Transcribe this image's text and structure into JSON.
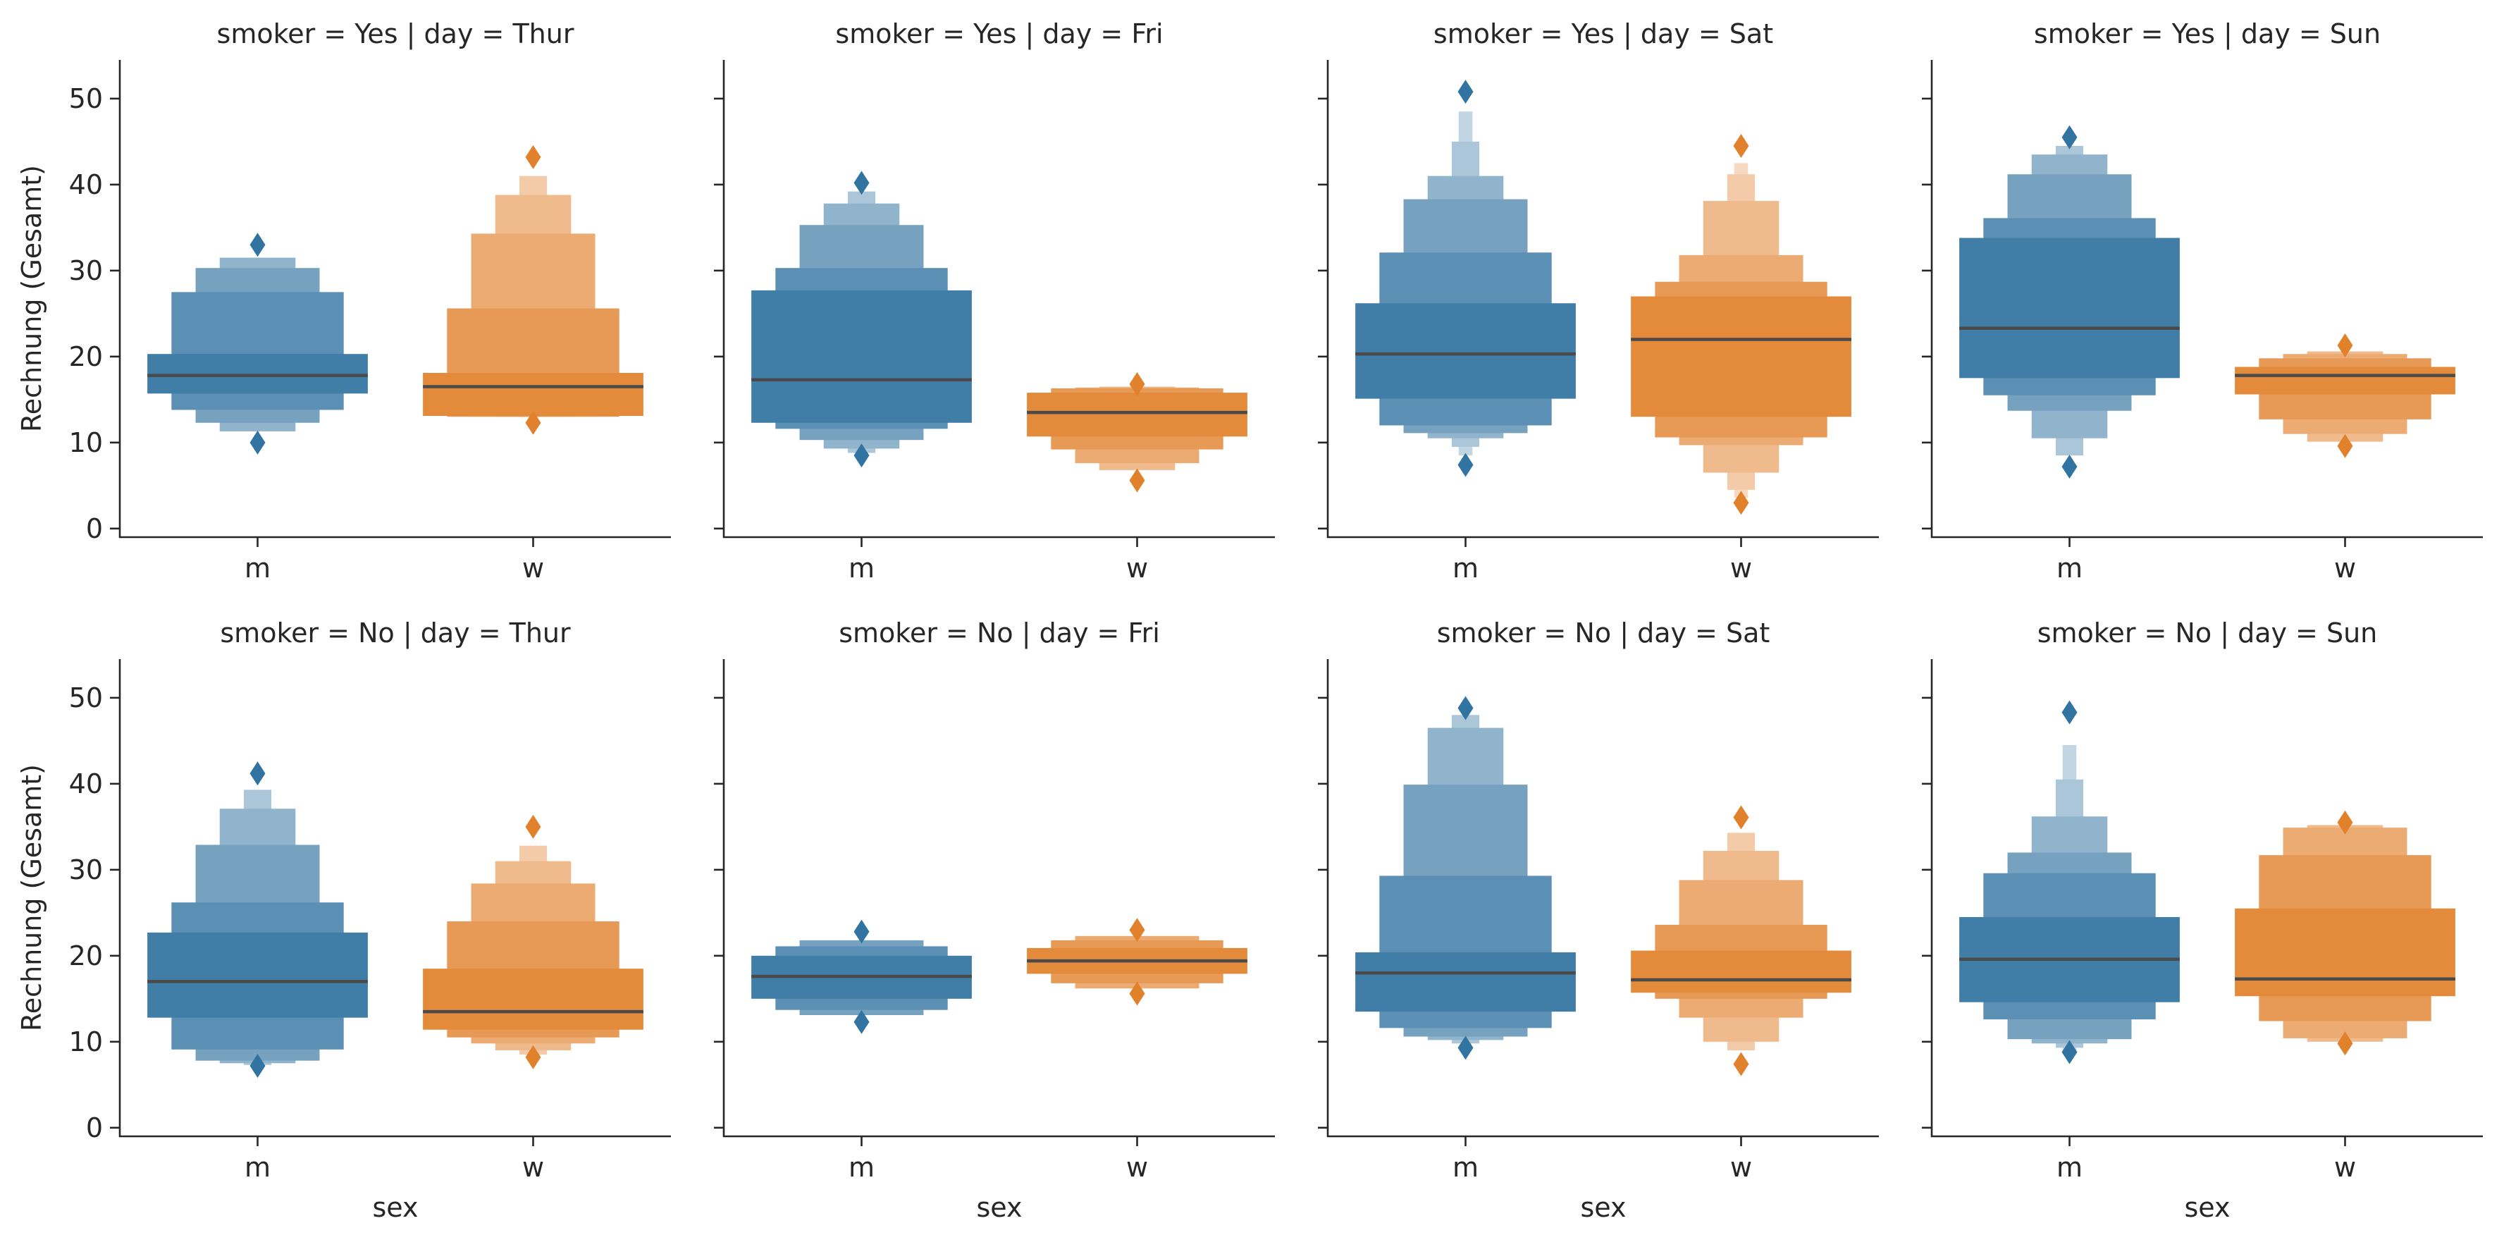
{
  "chart_data": {
    "type": "boxen",
    "x_field": "sex",
    "y_label": "Rechnung (Gesamt)",
    "categories": [
      "m",
      "w"
    ],
    "ylim": [
      -1,
      54.5
    ],
    "yticks": [
      0,
      10,
      20,
      30,
      40,
      50
    ],
    "colors": {
      "m": "#3274a1",
      "w": "#e1812c"
    },
    "median_color": "#4a4a4a",
    "grid": false,
    "panels": [
      {
        "title": "smoker = Yes | day = Thur",
        "boxes": [
          {
            "category": "m",
            "median": 17.8,
            "outliers": [
              33,
              10
            ],
            "levels": [
              [
                15.7,
                20.3
              ],
              [
                13.8,
                27.5
              ],
              [
                12.3,
                30.3
              ],
              [
                11.3,
                31.5
              ]
            ]
          },
          {
            "category": "w",
            "median": 16.5,
            "outliers": [
              43.2,
              12.3
            ],
            "levels": [
              [
                13.1,
                18.1
              ],
              [
                13.0,
                25.6
              ],
              [
                13.0,
                34.3
              ],
              [
                13.0,
                38.8
              ],
              [
                13.0,
                41
              ]
            ]
          }
        ]
      },
      {
        "title": "smoker = Yes | day = Fri",
        "boxes": [
          {
            "category": "m",
            "median": 17.3,
            "outliers": [
              40.2,
              8.5
            ],
            "levels": [
              [
                12.3,
                27.7
              ],
              [
                11.6,
                30.3
              ],
              [
                10.3,
                35.3
              ],
              [
                9.3,
                37.8
              ],
              [
                8.8,
                39.2
              ]
            ]
          },
          {
            "category": "w",
            "median": 13.5,
            "outliers": [
              16.8,
              5.6
            ],
            "levels": [
              [
                10.7,
                15.8
              ],
              [
                9.2,
                16.3
              ],
              [
                7.6,
                16.4
              ],
              [
                6.8,
                16.5
              ]
            ]
          }
        ]
      },
      {
        "title": "smoker = Yes | day = Sat",
        "boxes": [
          {
            "category": "m",
            "median": 20.3,
            "outliers": [
              50.8,
              7.4
            ],
            "levels": [
              [
                15.1,
                26.2
              ],
              [
                12.0,
                32.1
              ],
              [
                11.1,
                38.3
              ],
              [
                10.5,
                41
              ],
              [
                9.5,
                45
              ],
              [
                8.5,
                48.5
              ]
            ]
          },
          {
            "category": "w",
            "median": 22.0,
            "outliers": [
              44.5,
              3.0
            ],
            "levels": [
              [
                13.0,
                27.0
              ],
              [
                10.6,
                28.7
              ],
              [
                9.7,
                31.8
              ],
              [
                6.5,
                38.1
              ],
              [
                4.5,
                41.2
              ],
              [
                3.6,
                42.5
              ]
            ]
          }
        ]
      },
      {
        "title": "smoker = Yes | day = Sun",
        "boxes": [
          {
            "category": "m",
            "median": 23.3,
            "outliers": [
              45.5,
              7.2
            ],
            "levels": [
              [
                17.5,
                33.8
              ],
              [
                15.5,
                36.1
              ],
              [
                13.7,
                41.2
              ],
              [
                10.5,
                43.5
              ],
              [
                8.5,
                44.5
              ]
            ]
          },
          {
            "category": "w",
            "median": 17.8,
            "outliers": [
              21.3,
              9.6
            ],
            "levels": [
              [
                15.6,
                18.8
              ],
              [
                12.7,
                19.8
              ],
              [
                11.0,
                20.3
              ],
              [
                10.1,
                20.6
              ]
            ]
          }
        ]
      },
      {
        "title": "smoker = No | day = Thur",
        "boxes": [
          {
            "category": "m",
            "median": 17.0,
            "outliers": [
              41.2,
              7.2
            ],
            "levels": [
              [
                12.8,
                22.7
              ],
              [
                9.1,
                26.2
              ],
              [
                7.8,
                32.9
              ],
              [
                7.5,
                37.1
              ],
              [
                7.3,
                39.3
              ]
            ]
          },
          {
            "category": "w",
            "median": 13.5,
            "outliers": [
              35.0,
              8.2
            ],
            "levels": [
              [
                11.4,
                18.5
              ],
              [
                10.5,
                24.0
              ],
              [
                9.8,
                28.4
              ],
              [
                9.0,
                31.0
              ],
              [
                8.5,
                32.8
              ]
            ]
          }
        ]
      },
      {
        "title": "smoker = No | day = Fri",
        "boxes": [
          {
            "category": "m",
            "median": 17.6,
            "outliers": [
              22.8,
              12.3
            ],
            "levels": [
              [
                15.0,
                20.0
              ],
              [
                13.7,
                21.1
              ],
              [
                13.1,
                21.8
              ]
            ]
          },
          {
            "category": "w",
            "median": 19.4,
            "outliers": [
              23.0,
              15.6
            ],
            "levels": [
              [
                17.9,
                20.9
              ],
              [
                16.8,
                21.8
              ],
              [
                16.2,
                22.3
              ]
            ]
          }
        ]
      },
      {
        "title": "smoker = No | day = Sat",
        "boxes": [
          {
            "category": "m",
            "median": 18.0,
            "outliers": [
              48.8,
              9.3
            ],
            "levels": [
              [
                13.5,
                20.4
              ],
              [
                11.6,
                29.3
              ],
              [
                10.6,
                39.9
              ],
              [
                10.2,
                46.5
              ],
              [
                9.8,
                48
              ]
            ]
          },
          {
            "category": "w",
            "median": 17.2,
            "outliers": [
              36.1,
              7.4
            ],
            "levels": [
              [
                15.7,
                20.6
              ],
              [
                15.0,
                23.6
              ],
              [
                12.8,
                28.8
              ],
              [
                10.0,
                32.2
              ],
              [
                9.0,
                34.3
              ]
            ]
          }
        ]
      },
      {
        "title": "smoker = No | day = Sun",
        "boxes": [
          {
            "category": "m",
            "median": 19.6,
            "outliers": [
              48.3,
              8.8
            ],
            "levels": [
              [
                14.6,
                24.5
              ],
              [
                12.6,
                29.6
              ],
              [
                10.3,
                32.0
              ],
              [
                9.8,
                36.2
              ],
              [
                9.3,
                40.5
              ],
              [
                9.0,
                44.5
              ]
            ]
          },
          {
            "category": "w",
            "median": 17.3,
            "outliers": [
              35.5,
              9.8
            ],
            "levels": [
              [
                15.3,
                25.5
              ],
              [
                12.4,
                31.7
              ],
              [
                10.4,
                34.9
              ],
              [
                10.0,
                35.2
              ]
            ]
          }
        ]
      }
    ]
  }
}
